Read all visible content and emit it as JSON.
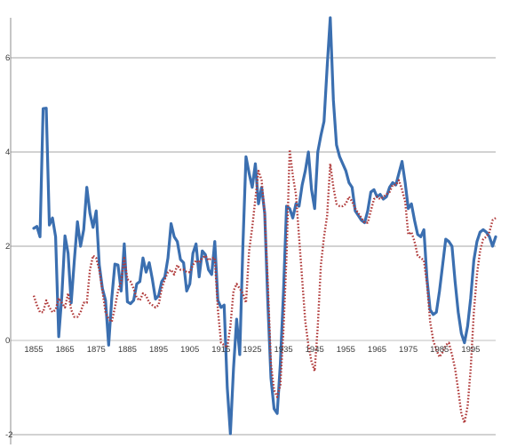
{
  "chart_data": {
    "type": "line",
    "title": "",
    "xlabel": "",
    "ylabel": "",
    "xlim": [
      1855,
      2003
    ],
    "ylim": [
      -2,
      7
    ],
    "grid": true,
    "x_ticks": [
      1855,
      1865,
      1875,
      1885,
      1895,
      1905,
      1915,
      1925,
      1935,
      1945,
      1955,
      1965,
      1975,
      1985,
      1995
    ],
    "y_ticks": [
      -2,
      0,
      2,
      4,
      6
    ],
    "x_tick_labels": [
      "1855",
      "1865",
      "1875",
      "1885",
      "1895",
      "1905",
      "1915",
      "1925",
      "1935",
      "1945",
      "1955",
      "1965",
      "1975",
      "1985",
      "1995"
    ],
    "y_tick_labels": [
      "-2",
      "0",
      "2",
      "4",
      "6"
    ],
    "series": [
      {
        "color": "#3b6fb0",
        "style": "solid",
        "points": [
          [
            1855,
            2.38
          ],
          [
            1856,
            2.42
          ],
          [
            1857,
            2.2
          ],
          [
            1858,
            4.92
          ],
          [
            1859,
            4.93
          ],
          [
            1860,
            2.45
          ],
          [
            1861,
            2.6
          ],
          [
            1862,
            2.2
          ],
          [
            1863,
            0.08
          ],
          [
            1864,
            0.95
          ],
          [
            1865,
            2.22
          ],
          [
            1866,
            1.85
          ],
          [
            1867,
            0.8
          ],
          [
            1868,
            1.7
          ],
          [
            1869,
            2.52
          ],
          [
            1870,
            2.0
          ],
          [
            1871,
            2.35
          ],
          [
            1872,
            3.25
          ],
          [
            1873,
            2.7
          ],
          [
            1874,
            2.4
          ],
          [
            1875,
            2.75
          ],
          [
            1876,
            1.6
          ],
          [
            1877,
            1.1
          ],
          [
            1878,
            0.85
          ],
          [
            1879,
            -0.1
          ],
          [
            1880,
            0.9
          ],
          [
            1881,
            1.62
          ],
          [
            1882,
            1.6
          ],
          [
            1883,
            1.05
          ],
          [
            1884,
            2.05
          ],
          [
            1885,
            0.82
          ],
          [
            1886,
            0.78
          ],
          [
            1887,
            0.85
          ],
          [
            1888,
            1.2
          ],
          [
            1889,
            1.25
          ],
          [
            1890,
            1.75
          ],
          [
            1891,
            1.45
          ],
          [
            1892,
            1.65
          ],
          [
            1893,
            1.3
          ],
          [
            1894,
            0.88
          ],
          [
            1895,
            0.95
          ],
          [
            1896,
            1.25
          ],
          [
            1897,
            1.35
          ],
          [
            1898,
            1.75
          ],
          [
            1899,
            2.48
          ],
          [
            1900,
            2.2
          ],
          [
            1901,
            2.1
          ],
          [
            1902,
            1.72
          ],
          [
            1903,
            1.65
          ],
          [
            1904,
            1.05
          ],
          [
            1905,
            1.2
          ],
          [
            1906,
            1.85
          ],
          [
            1907,
            2.05
          ],
          [
            1908,
            1.35
          ],
          [
            1909,
            1.9
          ],
          [
            1910,
            1.82
          ],
          [
            1911,
            1.5
          ],
          [
            1912,
            1.4
          ],
          [
            1913,
            2.1
          ],
          [
            1914,
            0.85
          ],
          [
            1915,
            0.7
          ],
          [
            1916,
            0.75
          ],
          [
            1917,
            -1.0
          ],
          [
            1918,
            -1.98
          ],
          [
            1919,
            -0.6
          ],
          [
            1920,
            0.45
          ],
          [
            1921,
            -0.3
          ],
          [
            1922,
            2.0
          ],
          [
            1923,
            3.9
          ],
          [
            1924,
            3.55
          ],
          [
            1925,
            3.25
          ],
          [
            1926,
            3.75
          ],
          [
            1927,
            2.9
          ],
          [
            1928,
            3.25
          ],
          [
            1929,
            2.7
          ],
          [
            1930,
            0.8
          ],
          [
            1931,
            -0.8
          ],
          [
            1932,
            -1.45
          ],
          [
            1933,
            -1.55
          ],
          [
            1934,
            -0.5
          ],
          [
            1935,
            1.0
          ],
          [
            1936,
            2.85
          ],
          [
            1937,
            2.8
          ],
          [
            1938,
            2.6
          ],
          [
            1939,
            2.9
          ],
          [
            1940,
            2.85
          ],
          [
            1941,
            3.3
          ],
          [
            1942,
            3.6
          ],
          [
            1943,
            4.0
          ],
          [
            1944,
            3.2
          ],
          [
            1945,
            2.8
          ],
          [
            1946,
            4.0
          ],
          [
            1947,
            4.35
          ],
          [
            1948,
            4.65
          ],
          [
            1949,
            5.8
          ],
          [
            1950,
            6.85
          ],
          [
            1951,
            5.1
          ],
          [
            1952,
            4.15
          ],
          [
            1953,
            3.9
          ],
          [
            1954,
            3.75
          ],
          [
            1955,
            3.6
          ],
          [
            1956,
            3.35
          ],
          [
            1957,
            3.25
          ],
          [
            1958,
            2.75
          ],
          [
            1959,
            2.65
          ],
          [
            1960,
            2.55
          ],
          [
            1961,
            2.5
          ],
          [
            1962,
            2.75
          ],
          [
            1963,
            3.15
          ],
          [
            1964,
            3.2
          ],
          [
            1965,
            3.05
          ],
          [
            1966,
            3.1
          ],
          [
            1967,
            3.0
          ],
          [
            1968,
            3.05
          ],
          [
            1969,
            3.25
          ],
          [
            1970,
            3.35
          ],
          [
            1971,
            3.3
          ],
          [
            1972,
            3.55
          ],
          [
            1973,
            3.8
          ],
          [
            1974,
            3.35
          ],
          [
            1975,
            2.8
          ],
          [
            1976,
            2.9
          ],
          [
            1977,
            2.55
          ],
          [
            1978,
            2.25
          ],
          [
            1979,
            2.2
          ],
          [
            1980,
            2.35
          ],
          [
            1981,
            1.3
          ],
          [
            1982,
            0.65
          ],
          [
            1983,
            0.55
          ],
          [
            1984,
            0.6
          ],
          [
            1985,
            1.05
          ],
          [
            1986,
            1.6
          ],
          [
            1987,
            2.15
          ],
          [
            1988,
            2.1
          ],
          [
            1989,
            2.0
          ],
          [
            1990,
            1.25
          ],
          [
            1991,
            0.6
          ],
          [
            1992,
            0.15
          ],
          [
            1993,
            -0.05
          ],
          [
            1994,
            0.3
          ],
          [
            1995,
            0.9
          ],
          [
            1996,
            1.7
          ],
          [
            1997,
            2.1
          ],
          [
            1998,
            2.3
          ],
          [
            1999,
            2.35
          ],
          [
            2000,
            2.3
          ],
          [
            2001,
            2.2
          ],
          [
            2002,
            2.0
          ],
          [
            2003,
            2.2
          ]
        ]
      },
      {
        "color": "#b03a3a",
        "style": "dotted",
        "points": [
          [
            1855,
            0.95
          ],
          [
            1856,
            0.75
          ],
          [
            1857,
            0.6
          ],
          [
            1858,
            0.6
          ],
          [
            1859,
            0.85
          ],
          [
            1860,
            0.7
          ],
          [
            1861,
            0.6
          ],
          [
            1862,
            0.65
          ],
          [
            1863,
            0.9
          ],
          [
            1864,
            0.8
          ],
          [
            1865,
            0.7
          ],
          [
            1866,
            1.0
          ],
          [
            1867,
            0.65
          ],
          [
            1868,
            0.5
          ],
          [
            1869,
            0.5
          ],
          [
            1870,
            0.6
          ],
          [
            1871,
            0.8
          ],
          [
            1872,
            0.8
          ],
          [
            1873,
            1.5
          ],
          [
            1874,
            1.8
          ],
          [
            1875,
            1.75
          ],
          [
            1876,
            1.5
          ],
          [
            1877,
            1.05
          ],
          [
            1878,
            0.6
          ],
          [
            1879,
            0.45
          ],
          [
            1880,
            0.4
          ],
          [
            1881,
            0.7
          ],
          [
            1882,
            1.05
          ],
          [
            1883,
            1.25
          ],
          [
            1884,
            1.75
          ],
          [
            1885,
            1.3
          ],
          [
            1886,
            1.25
          ],
          [
            1887,
            1.1
          ],
          [
            1888,
            0.9
          ],
          [
            1889,
            0.85
          ],
          [
            1890,
            1.0
          ],
          [
            1891,
            0.95
          ],
          [
            1892,
            0.8
          ],
          [
            1893,
            0.75
          ],
          [
            1894,
            0.7
          ],
          [
            1895,
            0.75
          ],
          [
            1896,
            1.1
          ],
          [
            1897,
            1.3
          ],
          [
            1898,
            1.45
          ],
          [
            1899,
            1.5
          ],
          [
            1900,
            1.4
          ],
          [
            1901,
            1.6
          ],
          [
            1902,
            1.5
          ],
          [
            1903,
            1.5
          ],
          [
            1904,
            1.45
          ],
          [
            1905,
            1.45
          ],
          [
            1906,
            1.6
          ],
          [
            1907,
            1.7
          ],
          [
            1908,
            1.65
          ],
          [
            1909,
            1.75
          ],
          [
            1910,
            1.8
          ],
          [
            1911,
            1.7
          ],
          [
            1912,
            1.75
          ],
          [
            1913,
            1.75
          ],
          [
            1914,
            0.65
          ],
          [
            1915,
            -0.05
          ],
          [
            1916,
            -0.1
          ],
          [
            1917,
            -0.15
          ],
          [
            1918,
            0.3
          ],
          [
            1919,
            1.05
          ],
          [
            1920,
            1.2
          ],
          [
            1921,
            1.1
          ],
          [
            1922,
            1.0
          ],
          [
            1923,
            0.8
          ],
          [
            1924,
            1.9
          ],
          [
            1925,
            2.4
          ],
          [
            1926,
            3.0
          ],
          [
            1927,
            3.6
          ],
          [
            1928,
            3.4
          ],
          [
            1929,
            2.7
          ],
          [
            1930,
            1.2
          ],
          [
            1931,
            -0.5
          ],
          [
            1932,
            -1.05
          ],
          [
            1933,
            -1.2
          ],
          [
            1934,
            -0.95
          ],
          [
            1935,
            0.2
          ],
          [
            1936,
            1.8
          ],
          [
            1937,
            4.05
          ],
          [
            1938,
            3.5
          ],
          [
            1939,
            3.1
          ],
          [
            1940,
            2.2
          ],
          [
            1941,
            1.3
          ],
          [
            1942,
            0.4
          ],
          [
            1943,
            -0.1
          ],
          [
            1944,
            -0.45
          ],
          [
            1945,
            -0.65
          ],
          [
            1946,
            0.3
          ],
          [
            1947,
            1.6
          ],
          [
            1948,
            2.2
          ],
          [
            1949,
            2.65
          ],
          [
            1950,
            3.75
          ],
          [
            1951,
            3.25
          ],
          [
            1952,
            2.9
          ],
          [
            1953,
            2.85
          ],
          [
            1954,
            2.85
          ],
          [
            1955,
            2.9
          ],
          [
            1956,
            3.05
          ],
          [
            1957,
            2.95
          ],
          [
            1958,
            2.8
          ],
          [
            1959,
            2.7
          ],
          [
            1960,
            2.6
          ],
          [
            1961,
            2.5
          ],
          [
            1962,
            2.5
          ],
          [
            1963,
            2.75
          ],
          [
            1964,
            3.0
          ],
          [
            1965,
            3.05
          ],
          [
            1966,
            3.0
          ],
          [
            1967,
            3.05
          ],
          [
            1968,
            3.1
          ],
          [
            1969,
            3.15
          ],
          [
            1970,
            3.3
          ],
          [
            1971,
            3.3
          ],
          [
            1972,
            3.4
          ],
          [
            1973,
            3.2
          ],
          [
            1974,
            2.95
          ],
          [
            1975,
            2.25
          ],
          [
            1976,
            2.3
          ],
          [
            1977,
            2.1
          ],
          [
            1978,
            1.8
          ],
          [
            1979,
            1.75
          ],
          [
            1980,
            1.7
          ],
          [
            1981,
            1.2
          ],
          [
            1982,
            0.4
          ],
          [
            1983,
            0.0
          ],
          [
            1984,
            -0.2
          ],
          [
            1985,
            -0.35
          ],
          [
            1986,
            -0.25
          ],
          [
            1987,
            -0.1
          ],
          [
            1988,
            -0.05
          ],
          [
            1989,
            -0.3
          ],
          [
            1990,
            -0.6
          ],
          [
            1991,
            -1.05
          ],
          [
            1992,
            -1.55
          ],
          [
            1993,
            -1.75
          ],
          [
            1994,
            -1.4
          ],
          [
            1995,
            -0.6
          ],
          [
            1996,
            0.6
          ],
          [
            1997,
            1.4
          ],
          [
            1998,
            1.9
          ],
          [
            1999,
            2.15
          ],
          [
            2000,
            2.2
          ],
          [
            2001,
            2.3
          ],
          [
            2002,
            2.55
          ],
          [
            2003,
            2.6
          ]
        ]
      }
    ]
  }
}
